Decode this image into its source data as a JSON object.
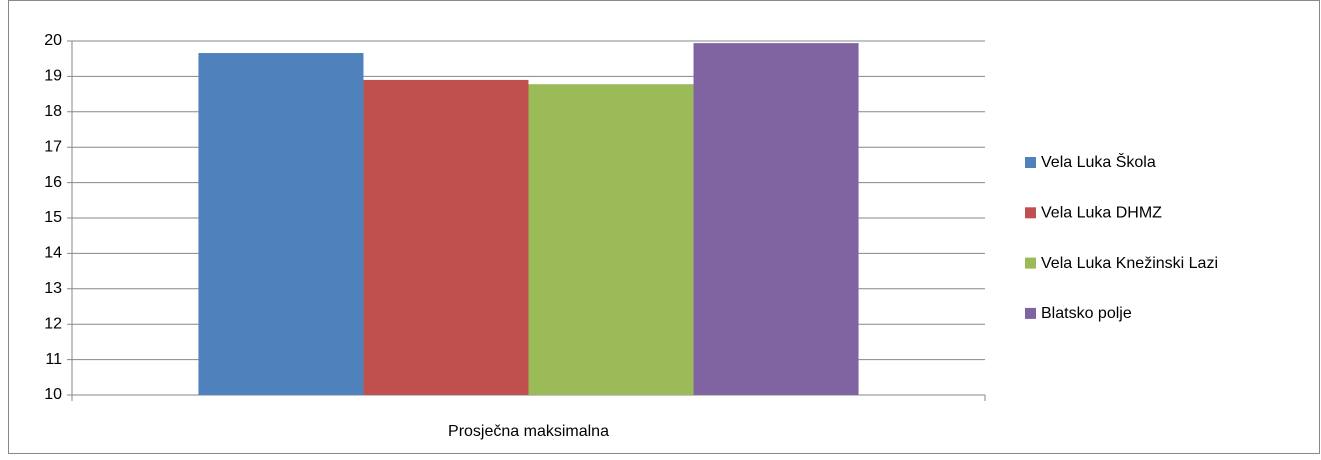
{
  "chart_data": {
    "type": "bar",
    "categories": [
      "Prosječna maksimalna"
    ],
    "series": [
      {
        "name": "Vela Luka Škola",
        "color": "#4f81bd",
        "values": [
          19.66
        ]
      },
      {
        "name": "Vela Luka DHMZ",
        "color": "#c0504d",
        "values": [
          18.9
        ]
      },
      {
        "name": "Vela Luka Knežinski Lazi",
        "color": "#9bbb59",
        "values": [
          18.78
        ]
      },
      {
        "name": "Blatsko polje",
        "color": "#8064a2",
        "values": [
          19.94
        ]
      }
    ],
    "ylim": [
      10,
      20
    ],
    "yticks": [
      10,
      11,
      12,
      13,
      14,
      15,
      16,
      17,
      18,
      19,
      20
    ],
    "grid": true,
    "legend": "right"
  }
}
